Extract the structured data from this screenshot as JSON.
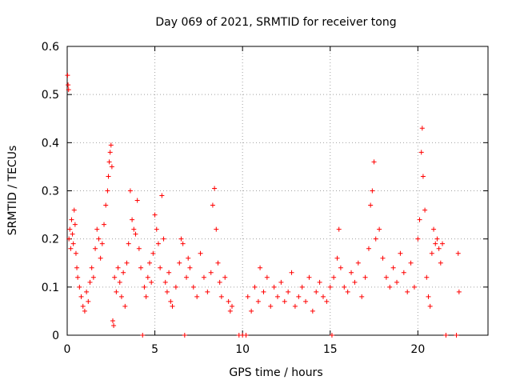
{
  "chart_data": {
    "type": "scatter",
    "title": "Day 069 of 2021, SRMTID for receiver tong",
    "xlabel": "GPS time / hours",
    "ylabel": "SRMTID / TECUs",
    "xlim": [
      0,
      24
    ],
    "ylim": [
      0,
      0.6
    ],
    "x_ticks": [
      0,
      5,
      10,
      15,
      20
    ],
    "y_ticks": [
      0,
      0.1,
      0.2,
      0.3,
      0.4,
      0.5,
      0.6
    ],
    "x_tick_labels": [
      "0",
      "5",
      "10",
      "15",
      "20"
    ],
    "y_tick_labels": [
      "0",
      "0.1",
      "0.2",
      "0.3",
      "0.4",
      "0.5",
      "0.6"
    ],
    "grid": true,
    "marker": "+",
    "color": "#ff0000",
    "series": [
      {
        "name": "SRMTID",
        "points": [
          [
            0.02,
            0.54
          ],
          [
            0.05,
            0.52
          ],
          [
            0.08,
            0.51
          ],
          [
            0.1,
            0.2
          ],
          [
            0.15,
            0.22
          ],
          [
            0.2,
            0.18
          ],
          [
            0.25,
            0.24
          ],
          [
            0.3,
            0.21
          ],
          [
            0.35,
            0.19
          ],
          [
            0.4,
            0.26
          ],
          [
            0.45,
            0.23
          ],
          [
            0.5,
            0.17
          ],
          [
            0.55,
            0.14
          ],
          [
            0.6,
            0.12
          ],
          [
            0.7,
            0.1
          ],
          [
            0.8,
            0.08
          ],
          [
            0.9,
            0.06
          ],
          [
            1.0,
            0.05
          ],
          [
            1.1,
            0.09
          ],
          [
            1.2,
            0.07
          ],
          [
            1.3,
            0.11
          ],
          [
            1.4,
            0.14
          ],
          [
            1.5,
            0.12
          ],
          [
            1.6,
            0.18
          ],
          [
            1.7,
            0.22
          ],
          [
            1.8,
            0.2
          ],
          [
            1.9,
            0.16
          ],
          [
            2.0,
            0.19
          ],
          [
            2.1,
            0.23
          ],
          [
            2.2,
            0.27
          ],
          [
            2.3,
            0.3
          ],
          [
            2.35,
            0.33
          ],
          [
            2.4,
            0.36
          ],
          [
            2.45,
            0.38
          ],
          [
            2.5,
            0.395
          ],
          [
            2.55,
            0.35
          ],
          [
            2.6,
            0.03
          ],
          [
            2.65,
            0.02
          ],
          [
            2.7,
            0.12
          ],
          [
            2.8,
            0.09
          ],
          [
            2.9,
            0.14
          ],
          [
            3.0,
            0.11
          ],
          [
            3.1,
            0.08
          ],
          [
            3.2,
            0.13
          ],
          [
            3.3,
            0.06
          ],
          [
            3.4,
            0.15
          ],
          [
            3.5,
            0.19
          ],
          [
            3.6,
            0.3
          ],
          [
            3.7,
            0.24
          ],
          [
            3.8,
            0.22
          ],
          [
            3.9,
            0.21
          ],
          [
            4.0,
            0.28
          ],
          [
            4.1,
            0.18
          ],
          [
            4.2,
            0.14
          ],
          [
            4.3,
            0.0
          ],
          [
            4.4,
            0.1
          ],
          [
            4.5,
            0.08
          ],
          [
            4.6,
            0.12
          ],
          [
            4.7,
            0.15
          ],
          [
            4.8,
            0.11
          ],
          [
            4.9,
            0.17
          ],
          [
            5.0,
            0.25
          ],
          [
            5.1,
            0.22
          ],
          [
            5.2,
            0.19
          ],
          [
            5.3,
            0.14
          ],
          [
            5.4,
            0.29
          ],
          [
            5.5,
            0.2
          ],
          [
            5.6,
            0.11
          ],
          [
            5.7,
            0.09
          ],
          [
            5.8,
            0.13
          ],
          [
            5.9,
            0.07
          ],
          [
            6.0,
            0.06
          ],
          [
            6.2,
            0.1
          ],
          [
            6.4,
            0.15
          ],
          [
            6.5,
            0.2
          ],
          [
            6.6,
            0.19
          ],
          [
            6.7,
            0.0
          ],
          [
            6.8,
            0.12
          ],
          [
            6.9,
            0.16
          ],
          [
            7.0,
            0.14
          ],
          [
            7.2,
            0.1
          ],
          [
            7.4,
            0.08
          ],
          [
            7.6,
            0.17
          ],
          [
            7.8,
            0.12
          ],
          [
            8.0,
            0.09
          ],
          [
            8.2,
            0.13
          ],
          [
            8.3,
            0.27
          ],
          [
            8.4,
            0.305
          ],
          [
            8.5,
            0.22
          ],
          [
            8.6,
            0.15
          ],
          [
            8.7,
            0.11
          ],
          [
            8.8,
            0.08
          ],
          [
            9.0,
            0.12
          ],
          [
            9.2,
            0.07
          ],
          [
            9.3,
            0.05
          ],
          [
            9.4,
            0.06
          ],
          [
            9.8,
            0.0
          ],
          [
            10.0,
            0.0
          ],
          [
            10.2,
            0.0
          ],
          [
            10.3,
            0.08
          ],
          [
            10.5,
            0.05
          ],
          [
            10.7,
            0.1
          ],
          [
            10.9,
            0.07
          ],
          [
            11.0,
            0.14
          ],
          [
            11.2,
            0.09
          ],
          [
            11.4,
            0.12
          ],
          [
            11.6,
            0.06
          ],
          [
            11.8,
            0.1
          ],
          [
            12.0,
            0.08
          ],
          [
            12.2,
            0.11
          ],
          [
            12.4,
            0.07
          ],
          [
            12.6,
            0.09
          ],
          [
            12.8,
            0.13
          ],
          [
            13.0,
            0.06
          ],
          [
            13.2,
            0.08
          ],
          [
            13.4,
            0.1
          ],
          [
            13.6,
            0.07
          ],
          [
            13.8,
            0.12
          ],
          [
            14.0,
            0.05
          ],
          [
            14.2,
            0.09
          ],
          [
            14.4,
            0.11
          ],
          [
            14.6,
            0.08
          ],
          [
            14.8,
            0.07
          ],
          [
            15.0,
            0.1
          ],
          [
            15.1,
            0.0
          ],
          [
            15.2,
            0.12
          ],
          [
            15.4,
            0.16
          ],
          [
            15.5,
            0.22
          ],
          [
            15.6,
            0.14
          ],
          [
            15.8,
            0.1
          ],
          [
            16.0,
            0.09
          ],
          [
            16.2,
            0.13
          ],
          [
            16.4,
            0.11
          ],
          [
            16.6,
            0.15
          ],
          [
            16.8,
            0.08
          ],
          [
            17.0,
            0.12
          ],
          [
            17.2,
            0.18
          ],
          [
            17.3,
            0.27
          ],
          [
            17.4,
            0.3
          ],
          [
            17.5,
            0.36
          ],
          [
            17.6,
            0.2
          ],
          [
            17.8,
            0.22
          ],
          [
            18.0,
            0.16
          ],
          [
            18.2,
            0.12
          ],
          [
            18.4,
            0.1
          ],
          [
            18.6,
            0.14
          ],
          [
            18.8,
            0.11
          ],
          [
            19.0,
            0.17
          ],
          [
            19.2,
            0.13
          ],
          [
            19.4,
            0.09
          ],
          [
            19.6,
            0.15
          ],
          [
            19.8,
            0.1
          ],
          [
            20.0,
            0.2
          ],
          [
            20.1,
            0.24
          ],
          [
            20.2,
            0.38
          ],
          [
            20.25,
            0.43
          ],
          [
            20.3,
            0.33
          ],
          [
            20.4,
            0.26
          ],
          [
            20.5,
            0.12
          ],
          [
            20.6,
            0.08
          ],
          [
            20.7,
            0.06
          ],
          [
            20.8,
            0.17
          ],
          [
            20.9,
            0.22
          ],
          [
            21.0,
            0.19
          ],
          [
            21.1,
            0.2
          ],
          [
            21.2,
            0.18
          ],
          [
            21.3,
            0.15
          ],
          [
            21.4,
            0.19
          ],
          [
            21.6,
            0.0
          ],
          [
            22.2,
            0.0
          ],
          [
            22.3,
            0.17
          ],
          [
            22.35,
            0.09
          ]
        ]
      }
    ]
  }
}
